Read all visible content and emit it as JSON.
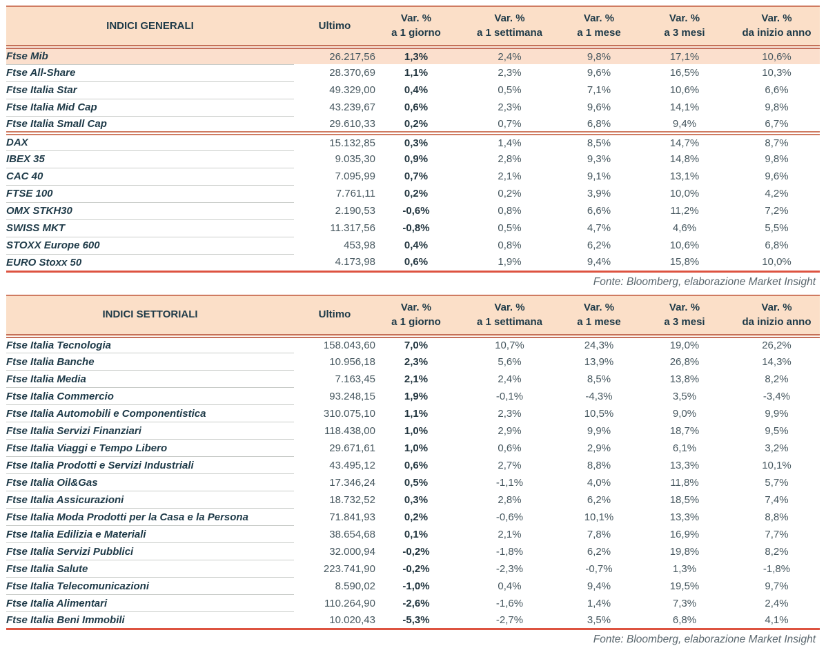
{
  "colors": {
    "header_bg": "#fbdfc8",
    "highlight_row_bg": "#fbdfcd",
    "rule_salmon": "#cf7b61",
    "rule_double": "#c4705a",
    "rule_bottom_red": "#dd5340",
    "text_dark": "#1e3a48",
    "text_number": "#46575f",
    "row_separator": "#c9ccc9",
    "fonte_text": "#5a676e"
  },
  "tables": [
    {
      "title": "INDICI GENERALI",
      "ultimo_label": "Ultimo",
      "var_columns": [
        {
          "line1": "Var. %",
          "line2": "a 1 giorno"
        },
        {
          "line1": "Var. %",
          "line2": "a 1 settimana"
        },
        {
          "line1": "Var. %",
          "line2": "a 1 mese"
        },
        {
          "line1": "Var. %",
          "line2": "a 3 mesi"
        },
        {
          "line1": "Var. %",
          "line2": "da inizio anno"
        }
      ],
      "rows": [
        {
          "name": "Ftse Mib",
          "ultimo": "26.217,56",
          "values": [
            "1,3%",
            "2,4%",
            "9,8%",
            "17,1%",
            "10,6%"
          ],
          "highlight": true
        },
        {
          "name": "Ftse All-Share",
          "ultimo": "28.370,69",
          "values": [
            "1,1%",
            "2,3%",
            "9,6%",
            "16,5%",
            "10,3%"
          ]
        },
        {
          "name": "Ftse Italia Star",
          "ultimo": "49.329,00",
          "values": [
            "0,4%",
            "0,5%",
            "7,1%",
            "10,6%",
            "6,6%"
          ]
        },
        {
          "name": "Ftse Italia Mid Cap",
          "ultimo": "43.239,67",
          "values": [
            "0,6%",
            "2,3%",
            "9,6%",
            "14,1%",
            "9,8%"
          ]
        },
        {
          "name": "Ftse Italia Small Cap",
          "ultimo": "29.610,33",
          "values": [
            "0,2%",
            "0,7%",
            "6,8%",
            "9,4%",
            "6,7%"
          ]
        },
        {
          "name": "DAX",
          "ultimo": "15.132,85",
          "values": [
            "0,3%",
            "1,4%",
            "8,5%",
            "14,7%",
            "8,7%"
          ],
          "section_start": true
        },
        {
          "name": "IBEX 35",
          "ultimo": "9.035,30",
          "values": [
            "0,9%",
            "2,8%",
            "9,3%",
            "14,8%",
            "9,8%"
          ]
        },
        {
          "name": "CAC 40",
          "ultimo": "7.095,99",
          "values": [
            "0,7%",
            "2,1%",
            "9,1%",
            "13,1%",
            "9,6%"
          ]
        },
        {
          "name": "FTSE 100",
          "ultimo": "7.761,11",
          "values": [
            "0,2%",
            "0,2%",
            "3,9%",
            "10,0%",
            "4,2%"
          ]
        },
        {
          "name": "OMX STKH30",
          "ultimo": "2.190,53",
          "values": [
            "-0,6%",
            "0,8%",
            "6,6%",
            "11,2%",
            "7,2%"
          ]
        },
        {
          "name": "SWISS MKT",
          "ultimo": "11.317,56",
          "values": [
            "-0,8%",
            "0,5%",
            "4,7%",
            "4,6%",
            "5,5%"
          ]
        },
        {
          "name": "STOXX Europe 600",
          "ultimo": "453,98",
          "values": [
            "0,4%",
            "0,8%",
            "6,2%",
            "10,6%",
            "6,8%"
          ]
        },
        {
          "name": "EURO Stoxx 50",
          "ultimo": "4.173,98",
          "values": [
            "0,6%",
            "1,9%",
            "9,4%",
            "15,8%",
            "10,0%"
          ]
        }
      ],
      "fonte": "Fonte: Bloomberg, elaborazione Market Insight"
    },
    {
      "title": "INDICI SETTORIALI",
      "ultimo_label": "Ultimo",
      "var_columns": [
        {
          "line1": "Var. %",
          "line2": "a 1 giorno"
        },
        {
          "line1": "Var. %",
          "line2": "a 1 settimana"
        },
        {
          "line1": "Var. %",
          "line2": "a 1 mese"
        },
        {
          "line1": "Var. %",
          "line2": "a 3 mesi"
        },
        {
          "line1": "Var. %",
          "line2": "da inizio anno"
        }
      ],
      "rows": [
        {
          "name": "Ftse Italia Tecnologia",
          "ultimo": "158.043,60",
          "values": [
            "7,0%",
            "10,7%",
            "24,3%",
            "19,0%",
            "26,2%"
          ]
        },
        {
          "name": "Ftse Italia Banche",
          "ultimo": "10.956,18",
          "values": [
            "2,3%",
            "5,6%",
            "13,9%",
            "26,8%",
            "14,3%"
          ]
        },
        {
          "name": "Ftse Italia Media",
          "ultimo": "7.163,45",
          "values": [
            "2,1%",
            "2,4%",
            "8,5%",
            "13,8%",
            "8,2%"
          ]
        },
        {
          "name": "Ftse Italia Commercio",
          "ultimo": "93.248,15",
          "values": [
            "1,9%",
            "-0,1%",
            "-4,3%",
            "3,5%",
            "-3,4%"
          ]
        },
        {
          "name": "Ftse Italia Automobili e Componentistica",
          "ultimo": "310.075,10",
          "values": [
            "1,1%",
            "2,3%",
            "10,5%",
            "9,0%",
            "9,9%"
          ]
        },
        {
          "name": "Ftse Italia Servizi Finanziari",
          "ultimo": "118.438,00",
          "values": [
            "1,0%",
            "2,9%",
            "9,9%",
            "18,7%",
            "9,5%"
          ]
        },
        {
          "name": "Ftse Italia Viaggi e Tempo Libero",
          "ultimo": "29.671,61",
          "values": [
            "1,0%",
            "0,6%",
            "2,9%",
            "6,1%",
            "3,2%"
          ]
        },
        {
          "name": "Ftse Italia Prodotti e Servizi Industriali",
          "ultimo": "43.495,12",
          "values": [
            "0,6%",
            "2,7%",
            "8,8%",
            "13,3%",
            "10,1%"
          ]
        },
        {
          "name": "Ftse Italia Oil&Gas",
          "ultimo": "17.346,24",
          "values": [
            "0,5%",
            "-1,1%",
            "4,0%",
            "11,8%",
            "5,7%"
          ]
        },
        {
          "name": "Ftse Italia Assicurazioni",
          "ultimo": "18.732,52",
          "values": [
            "0,3%",
            "2,8%",
            "6,2%",
            "18,5%",
            "7,4%"
          ]
        },
        {
          "name": "Ftse Italia Moda Prodotti per la Casa e la Persona",
          "ultimo": "71.841,93",
          "values": [
            "0,2%",
            "-0,6%",
            "10,1%",
            "13,3%",
            "8,8%"
          ]
        },
        {
          "name": "Ftse Italia Edilizia e Materiali",
          "ultimo": "38.654,68",
          "values": [
            "0,1%",
            "2,1%",
            "7,8%",
            "16,9%",
            "7,7%"
          ]
        },
        {
          "name": "Ftse Italia Servizi Pubblici",
          "ultimo": "32.000,94",
          "values": [
            "-0,2%",
            "-1,8%",
            "6,2%",
            "19,8%",
            "8,2%"
          ]
        },
        {
          "name": "Ftse Italia Salute",
          "ultimo": "223.741,90",
          "values": [
            "-0,2%",
            "-2,3%",
            "-0,7%",
            "1,3%",
            "-1,8%"
          ]
        },
        {
          "name": "Ftse Italia Telecomunicazioni",
          "ultimo": "8.590,02",
          "values": [
            "-1,0%",
            "0,4%",
            "9,4%",
            "19,5%",
            "9,7%"
          ]
        },
        {
          "name": "Ftse Italia Alimentari",
          "ultimo": "110.264,90",
          "values": [
            "-2,6%",
            "-1,6%",
            "1,4%",
            "7,3%",
            "2,4%"
          ]
        },
        {
          "name": "Ftse Italia Beni Immobili",
          "ultimo": "10.020,43",
          "values": [
            "-5,3%",
            "-2,7%",
            "3,5%",
            "6,8%",
            "4,1%"
          ]
        }
      ],
      "fonte": "Fonte: Bloomberg, elaborazione Market Insight"
    }
  ]
}
